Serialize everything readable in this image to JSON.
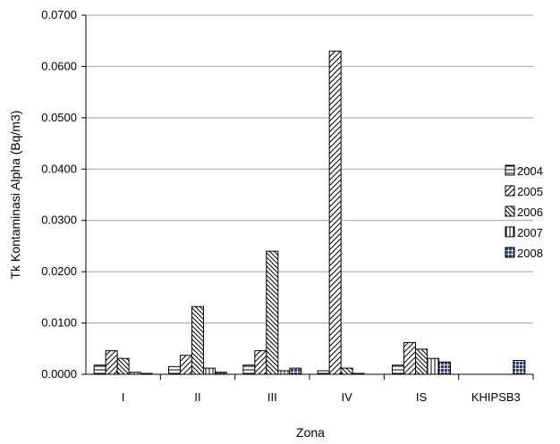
{
  "chart_data": {
    "type": "bar",
    "title": "",
    "xlabel": "Zona",
    "ylabel": "Tk Kontaminasi Alpha (Bq/m3)",
    "categories": [
      "I",
      "II",
      "III",
      "IV",
      "IS",
      "KHIPSB3"
    ],
    "ylim": [
      0,
      0.07
    ],
    "yticks": [
      "0.0000",
      "0.0100",
      "0.0200",
      "0.0300",
      "0.0400",
      "0.0500",
      "0.0600",
      "0.0700"
    ],
    "ytick_values": [
      0,
      0.01,
      0.02,
      0.03,
      0.04,
      0.05,
      0.06,
      0.07
    ],
    "grid": true,
    "legend_position": "right",
    "series": [
      {
        "name": "2004",
        "pattern": "horizontal",
        "values": [
          0.0018,
          0.0015,
          0.0018,
          0.0007,
          0.0018,
          null
        ]
      },
      {
        "name": "2005",
        "pattern": "diagonal-up",
        "values": [
          0.0046,
          0.0037,
          0.0046,
          0.063,
          0.0062,
          null
        ]
      },
      {
        "name": "2006",
        "pattern": "diagonal-down",
        "values": [
          0.0031,
          0.0132,
          0.024,
          0.0012,
          0.0049,
          null
        ]
      },
      {
        "name": "2007",
        "pattern": "vertical",
        "values": [
          0.0004,
          0.0012,
          0.0007,
          0.0001,
          0.0031,
          null
        ]
      },
      {
        "name": "2008",
        "pattern": "grid-blue",
        "values": [
          0.0001,
          0.0004,
          0.0012,
          null,
          0.0024,
          0.0027
        ]
      }
    ],
    "colors": {
      "stroke": "#000000",
      "grid": "#a0a0a0",
      "fill2008": "#1f3d9b"
    }
  }
}
